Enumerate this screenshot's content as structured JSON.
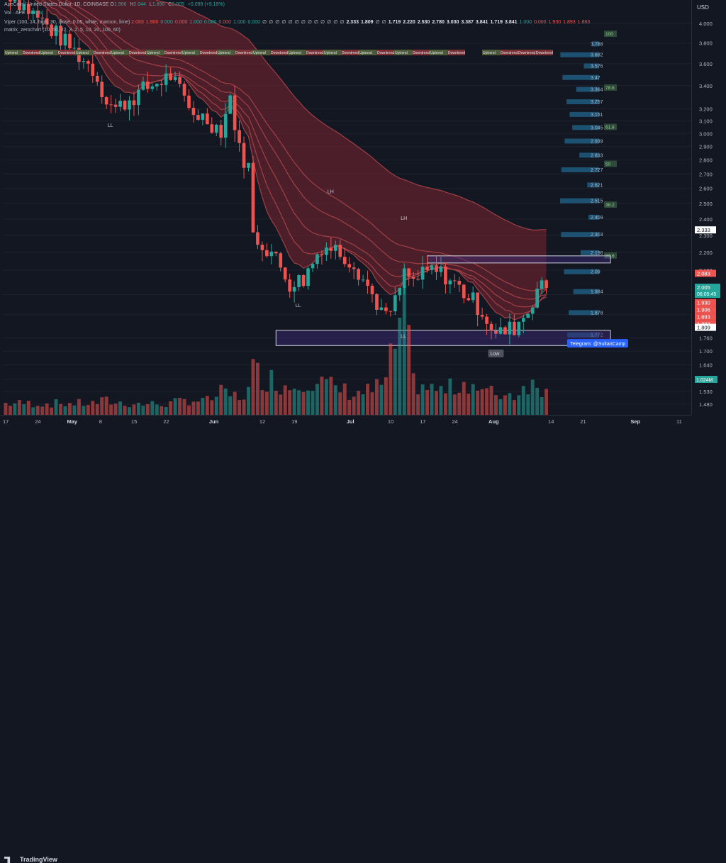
{
  "header": {
    "line1": {
      "symbol": "ApeCoin / United States Dollar, 1D, COINBASE",
      "o_label": "O",
      "o": "1.906",
      "h_label": "H",
      "h": "2.044",
      "l_label": "L",
      "l": "1.896",
      "c_label": "C",
      "c": "2.005",
      "change": "+0.099 (+5.19%)"
    },
    "line2": {
      "label": "Vol · APE",
      "value": "1.024M"
    },
    "line3": {
      "label": "Viper (100, 14, high, 30, close, 0.05, white, maroon, lime)",
      "values": [
        "2.083",
        "1.906",
        "0.000",
        "0.000",
        "1.000",
        "0.000",
        "0.000",
        "1.000",
        "0.000",
        "∅",
        "∅",
        "∅",
        "∅",
        "∅",
        "∅",
        "∅",
        "∅",
        "∅",
        "∅",
        "∅",
        "∅",
        "∅",
        "2.333",
        "1.809",
        "∅",
        "∅",
        "1.719",
        "2.220",
        "2.530",
        "2.780",
        "3.030",
        "3.387",
        "3.841",
        "1.719",
        "3.841",
        "1.000",
        "0.000",
        "1.930",
        "1.893",
        "1.883"
      ]
    },
    "line4": {
      "label": "matrix_zerochart (10, 50, 22, 3, 2, 5, 10, 20, 100, 60)"
    }
  },
  "price_axis": {
    "currency": "USD",
    "ticks": [
      "4.000",
      "3.800",
      "3.600",
      "3.400",
      "3.200",
      "3.100",
      "3.000",
      "2.900",
      "2.800",
      "2.700",
      "2.600",
      "2.500",
      "2.400",
      "2.300",
      "2.200",
      "2.100",
      "1.970",
      "1.870",
      "1.760",
      "1.700",
      "1.640",
      "1.580",
      "1.530",
      "1.480"
    ],
    "badges": {
      "level_high": "2.333",
      "level_2083": "2.083",
      "current_price": "2.005",
      "countdown": "06:05:45",
      "stack": [
        "1.930",
        "1.906",
        "1.893",
        "1.883"
      ],
      "level_low": "1.809",
      "volume": "1.024M"
    }
  },
  "time_axis": {
    "labels": [
      "17",
      "24",
      "May",
      "8",
      "15",
      "22",
      "Jun",
      "12",
      "19",
      "Jul",
      "10",
      "17",
      "24",
      "Aug",
      "14",
      "21",
      "Sep",
      "11"
    ]
  },
  "overlay": {
    "trend_labels": [
      "Uptrend",
      "Downtrend",
      "Uptrend",
      "Downtrend",
      "Uptrend",
      "Downtrend",
      "Uptrend",
      "Downtrend",
      "Uptrend",
      "Downtrend",
      "Uptrend",
      "Downtrend",
      "Uptrend",
      "Downtrend",
      "Uptrend",
      "Downtrend",
      "Uptrend",
      "Downtrend",
      "Uptrend",
      "Downtrend",
      "Uptrend",
      "Downtrend",
      "Uptrend",
      "Downtrend",
      "Uptrend",
      "Downtrend"
    ],
    "pivots": [
      {
        "label": "LL",
        "date": "2023-05-10",
        "price": 3.12,
        "dir": "low"
      },
      {
        "label": "LH",
        "date": "2023-06-27",
        "price": 2.53,
        "dir": "high"
      },
      {
        "label": "LL",
        "date": "2023-06-20",
        "price": 1.95,
        "dir": "low"
      },
      {
        "label": "LH",
        "date": "2023-07-13",
        "price": 2.36,
        "dir": "high"
      },
      {
        "label": "LL",
        "date": "2023-07-13",
        "price": 1.8,
        "dir": "low"
      },
      {
        "label": "Low",
        "date": "2023-08-02",
        "price": 1.72,
        "dir": "low"
      }
    ],
    "profile_levels": [
      "3.788",
      "3.682",
      "3.576",
      "3.47",
      "3.364",
      "3.257",
      "3.151",
      "3.045",
      "2.939",
      "2.833",
      "2.727",
      "2.621",
      "2.515",
      "2.409",
      "2.303",
      "2.196",
      "2.09",
      "1.984",
      "1.878",
      "1.772"
    ],
    "profile_tags": [
      "100",
      "78.6",
      "61.8",
      "50",
      "38.2",
      "23.6"
    ],
    "watermark": "Telegram: @SultanCamp",
    "brand": "TradingView"
  },
  "colors": {
    "bg": "#131722",
    "up": "#26a69a",
    "down": "#ef5350",
    "ribbon": "#b2464b",
    "cloud": "#7b2530",
    "profile": "#1e5c80"
  },
  "chart_data": {
    "type": "candlestick",
    "title": "ApeCoin / United States Dollar, 1D, COINBASE",
    "ylabel": "USD",
    "ylim": [
      1.45,
      4.05
    ],
    "xlim": [
      "2023-04-17",
      "2023-09-11"
    ],
    "x": [
      "2023-05-06",
      "2023-05-09",
      "2023-05-11",
      "2023-05-17",
      "2023-05-23",
      "2023-05-27",
      "2023-05-31",
      "2023-06-03",
      "2023-06-05",
      "2023-06-07",
      "2023-06-09",
      "2023-06-10",
      "2023-06-14",
      "2023-06-18",
      "2023-06-21",
      "2023-06-25",
      "2023-06-28",
      "2023-07-02",
      "2023-07-06",
      "2023-07-09",
      "2023-07-11",
      "2023-07-13",
      "2023-07-15",
      "2023-07-19",
      "2023-07-22",
      "2023-07-27",
      "2023-07-30",
      "2023-08-02",
      "2023-08-06",
      "2023-08-09",
      "2023-08-11"
    ],
    "close": [
      3.55,
      3.28,
      3.2,
      3.36,
      3.49,
      3.2,
      3.11,
      3.03,
      3.3,
      2.87,
      2.75,
      2.3,
      2.2,
      2.03,
      2.05,
      2.24,
      2.22,
      2.14,
      1.97,
      1.85,
      1.93,
      2.08,
      2.04,
      2.1,
      2.07,
      1.96,
      1.89,
      1.77,
      1.81,
      1.89,
      2.005
    ],
    "volume": [
      0.45,
      0.55,
      0.48,
      0.42,
      0.44,
      0.6,
      0.55,
      0.85,
      0.75,
      0.72,
      0.95,
      1.7,
      1.4,
      1.1,
      1.5,
      1.25,
      1.05,
      0.85,
      0.95,
      1.3,
      2.8,
      3.8,
      1.3,
      1.0,
      0.95,
      1.35,
      0.9,
      0.85,
      0.8,
      1.3,
      1.024
    ],
    "volume_unit": "M",
    "zones": [
      {
        "name": "resistance",
        "y": [
          2.14,
          2.18
        ],
        "x": [
          "2023-07-18",
          "2023-08-27"
        ]
      },
      {
        "name": "support",
        "y": [
          1.725,
          1.795
        ],
        "x": [
          "2023-06-15",
          "2023-08-27"
        ]
      }
    ]
  }
}
